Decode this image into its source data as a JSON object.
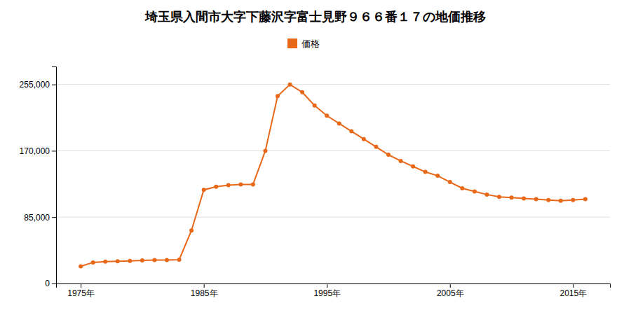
{
  "chart_data": {
    "type": "line",
    "title": "埼玉県入間市大字下藤沢字富士見野９６６番１７の地価推移",
    "x": [
      1975,
      1976,
      1977,
      1978,
      1979,
      1980,
      1981,
      1982,
      1983,
      1984,
      1985,
      1986,
      1987,
      1988,
      1989,
      1990,
      1991,
      1992,
      1993,
      1994,
      1995,
      1996,
      1997,
      1998,
      1999,
      2000,
      2001,
      2002,
      2003,
      2004,
      2005,
      2006,
      2007,
      2008,
      2009,
      2010,
      2011,
      2012,
      2013,
      2014,
      2015,
      2016
    ],
    "series": [
      {
        "name": "価格",
        "color": "#e8681a",
        "marker": "circle",
        "values": [
          22000,
          27000,
          28000,
          28500,
          29000,
          29500,
          30000,
          30000,
          30500,
          68000,
          120000,
          124000,
          126000,
          127000,
          127000,
          170000,
          240000,
          255000,
          245000,
          228000,
          215000,
          205000,
          195000,
          185000,
          175000,
          165000,
          157000,
          150000,
          143000,
          138000,
          130000,
          122000,
          118000,
          114000,
          111000,
          110000,
          109000,
          108000,
          107000,
          106000,
          107000,
          108000
        ]
      }
    ],
    "xlim": [
      1973,
      2018
    ],
    "xticks": [
      {
        "value": 1975,
        "label": "1975年"
      },
      {
        "value": 1985,
        "label": "1985年"
      },
      {
        "value": 1995,
        "label": "1995年"
      },
      {
        "value": 2005,
        "label": "2005年"
      },
      {
        "value": 2015,
        "label": "2015年"
      }
    ],
    "ylim": [
      0,
      278000
    ],
    "yticks": [
      0,
      {
        "value": 85000,
        "label": "85,000"
      },
      {
        "value": 170000,
        "label": "170,000"
      },
      {
        "value": 255000,
        "label": "255,000"
      }
    ],
    "grid": true,
    "legend": "top"
  }
}
